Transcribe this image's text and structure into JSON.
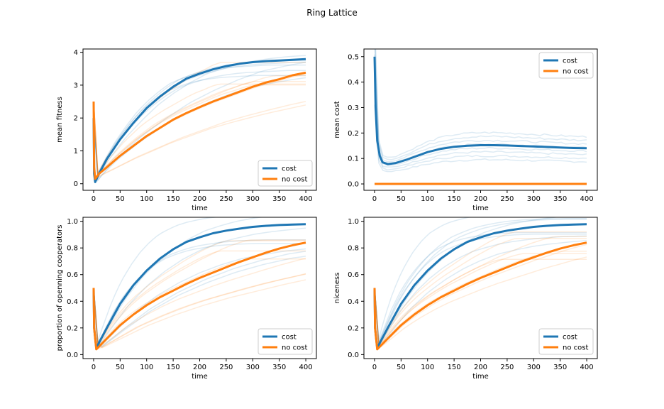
{
  "figure_title": "Ring Lattice",
  "colors": {
    "cost": "#1f77b4",
    "no_cost": "#ff7f0e",
    "axis": "#000000",
    "background": "#ffffff"
  },
  "chart_data": [
    {
      "type": "line",
      "title": "",
      "xlabel": "time",
      "ylabel": "mean fitness",
      "xlim": [
        -20,
        420
      ],
      "ylim": [
        -0.2,
        4.1
      ],
      "xticks": [
        0,
        50,
        100,
        150,
        200,
        250,
        300,
        350,
        400
      ],
      "yticks": [
        0,
        1,
        2,
        3,
        4
      ],
      "ytick_labels": [
        "0",
        "1",
        "2",
        "3",
        "4"
      ],
      "legend": "lower-right",
      "series": [
        {
          "name": "cost",
          "color": "#1f77b4",
          "x": [
            0,
            1,
            3,
            10,
            25,
            50,
            75,
            100,
            125,
            150,
            175,
            200,
            225,
            250,
            275,
            300,
            325,
            350,
            375,
            400
          ],
          "y": [
            2.0,
            0.3,
            0.05,
            0.3,
            0.75,
            1.35,
            1.85,
            2.3,
            2.65,
            2.95,
            3.2,
            3.35,
            3.48,
            3.58,
            3.65,
            3.7,
            3.73,
            3.75,
            3.77,
            3.79
          ]
        },
        {
          "name": "no cost",
          "color": "#ff7f0e",
          "x": [
            0,
            1,
            3,
            10,
            25,
            50,
            75,
            100,
            125,
            150,
            175,
            200,
            225,
            250,
            275,
            300,
            325,
            350,
            375,
            400
          ],
          "y": [
            2.5,
            0.5,
            0.15,
            0.3,
            0.5,
            0.85,
            1.15,
            1.45,
            1.7,
            1.95,
            2.15,
            2.33,
            2.5,
            2.65,
            2.8,
            2.95,
            3.08,
            3.18,
            3.3,
            3.38
          ]
        }
      ]
    },
    {
      "type": "line",
      "title": "",
      "xlabel": "time",
      "ylabel": "mean cost",
      "xlim": [
        -20,
        420
      ],
      "ylim": [
        -0.025,
        0.53
      ],
      "xticks": [
        0,
        50,
        100,
        150,
        200,
        250,
        300,
        350,
        400
      ],
      "yticks": [
        0.0,
        0.1,
        0.2,
        0.3,
        0.4,
        0.5
      ],
      "ytick_labels": [
        "0.0",
        "0.1",
        "0.2",
        "0.3",
        "0.4",
        "0.5"
      ],
      "legend": "top-right",
      "series": [
        {
          "name": "cost",
          "color": "#1f77b4",
          "x": [
            0,
            2,
            5,
            10,
            15,
            25,
            40,
            60,
            80,
            100,
            125,
            150,
            175,
            200,
            225,
            250,
            275,
            300,
            325,
            350,
            375,
            400
          ],
          "y": [
            0.5,
            0.3,
            0.17,
            0.11,
            0.085,
            0.078,
            0.082,
            0.095,
            0.11,
            0.125,
            0.138,
            0.146,
            0.15,
            0.152,
            0.152,
            0.151,
            0.149,
            0.147,
            0.145,
            0.143,
            0.141,
            0.14
          ]
        },
        {
          "name": "no cost",
          "color": "#ff7f0e",
          "x": [
            0,
            400
          ],
          "y": [
            0.0,
            0.0
          ]
        }
      ]
    },
    {
      "type": "line",
      "title": "",
      "xlabel": "time",
      "ylabel": "proportion of openning cooperators",
      "xlim": [
        -20,
        420
      ],
      "ylim": [
        -0.03,
        1.03
      ],
      "xticks": [
        0,
        50,
        100,
        150,
        200,
        250,
        300,
        350,
        400
      ],
      "yticks": [
        0.0,
        0.2,
        0.4,
        0.6,
        0.8,
        1.0
      ],
      "ytick_labels": [
        "0.0",
        "0.2",
        "0.4",
        "0.6",
        "0.8",
        "1.0"
      ],
      "legend": "lower-right",
      "series": [
        {
          "name": "cost",
          "color": "#1f77b4",
          "x": [
            0,
            1,
            5,
            25,
            50,
            75,
            100,
            125,
            150,
            175,
            200,
            225,
            250,
            275,
            300,
            325,
            350,
            375,
            400
          ],
          "y": [
            0.5,
            0.2,
            0.05,
            0.2,
            0.38,
            0.52,
            0.63,
            0.72,
            0.79,
            0.845,
            0.88,
            0.91,
            0.93,
            0.945,
            0.958,
            0.966,
            0.972,
            0.975,
            0.978
          ]
        },
        {
          "name": "no cost",
          "color": "#ff7f0e",
          "x": [
            0,
            1,
            5,
            25,
            50,
            75,
            100,
            125,
            150,
            175,
            200,
            225,
            250,
            275,
            300,
            325,
            350,
            375,
            400
          ],
          "y": [
            0.5,
            0.2,
            0.04,
            0.12,
            0.22,
            0.3,
            0.37,
            0.43,
            0.48,
            0.53,
            0.575,
            0.615,
            0.655,
            0.695,
            0.73,
            0.765,
            0.795,
            0.82,
            0.84
          ]
        }
      ]
    },
    {
      "type": "line",
      "title": "",
      "xlabel": "time",
      "ylabel": "niceness",
      "xlim": [
        -20,
        420
      ],
      "ylim": [
        -0.03,
        1.03
      ],
      "xticks": [
        0,
        50,
        100,
        150,
        200,
        250,
        300,
        350,
        400
      ],
      "yticks": [
        0.0,
        0.2,
        0.4,
        0.6,
        0.8,
        1.0
      ],
      "ytick_labels": [
        "0.0",
        "0.2",
        "0.4",
        "0.6",
        "0.8",
        "1.0"
      ],
      "legend": "lower-right",
      "series": [
        {
          "name": "cost",
          "color": "#1f77b4",
          "x": [
            0,
            1,
            5,
            25,
            50,
            75,
            100,
            125,
            150,
            175,
            200,
            225,
            250,
            275,
            300,
            325,
            350,
            375,
            400
          ],
          "y": [
            0.5,
            0.2,
            0.05,
            0.2,
            0.38,
            0.52,
            0.63,
            0.72,
            0.79,
            0.845,
            0.88,
            0.91,
            0.93,
            0.945,
            0.958,
            0.966,
            0.972,
            0.975,
            0.978
          ]
        },
        {
          "name": "no cost",
          "color": "#ff7f0e",
          "x": [
            0,
            1,
            5,
            25,
            50,
            75,
            100,
            125,
            150,
            175,
            200,
            225,
            250,
            275,
            300,
            325,
            350,
            375,
            400
          ],
          "y": [
            0.5,
            0.2,
            0.04,
            0.12,
            0.22,
            0.3,
            0.37,
            0.43,
            0.48,
            0.53,
            0.575,
            0.615,
            0.655,
            0.695,
            0.73,
            0.765,
            0.795,
            0.82,
            0.84
          ]
        }
      ]
    }
  ]
}
